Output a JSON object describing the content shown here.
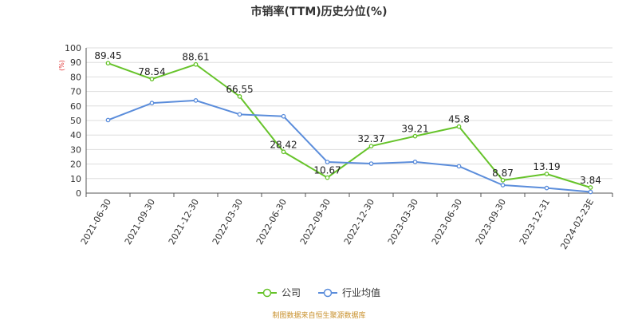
{
  "colors": {
    "company": "#66c32a",
    "industry": "#5b8ddb",
    "grid": "#dddddd",
    "axis": "#555555",
    "unit": "#e03030",
    "source": "#c8902c"
  },
  "source_text": "制图数据来自恒生聚源数据库",
  "chart_data": {
    "type": "line",
    "title": "市销率(TTM)历史分位(%)",
    "ylabel": "(%)",
    "ylim": [
      0,
      100
    ],
    "yticks": [
      0,
      10,
      20,
      30,
      40,
      50,
      60,
      70,
      80,
      90,
      100
    ],
    "grid": true,
    "legend_position": "bottom",
    "categories": [
      "2021-06-30",
      "2021-09-30",
      "2021-12-30",
      "2022-03-30",
      "2022-06-30",
      "2022-09-30",
      "2022-12-30",
      "2023-03-30",
      "2023-06-30",
      "2023-09-30",
      "2023-12-31",
      "2024-02-23E"
    ],
    "series": [
      {
        "name": "公司",
        "color": "#66c32a",
        "values": [
          89.45,
          78.54,
          88.61,
          66.55,
          28.42,
          10.67,
          32.37,
          39.21,
          45.8,
          8.87,
          13.19,
          3.84
        ],
        "labels": [
          "89.45",
          "78.54",
          "88.61",
          "66.55",
          "28.42",
          "10.67",
          "32.37",
          "39.21",
          "45.8",
          "8.87",
          "13.19",
          "3.84"
        ]
      },
      {
        "name": "行业均值",
        "color": "#5b8ddb",
        "values": [
          50.3,
          62.0,
          63.8,
          54.2,
          52.9,
          21.4,
          20.3,
          21.5,
          18.5,
          5.5,
          3.5,
          0.8
        ]
      }
    ]
  }
}
